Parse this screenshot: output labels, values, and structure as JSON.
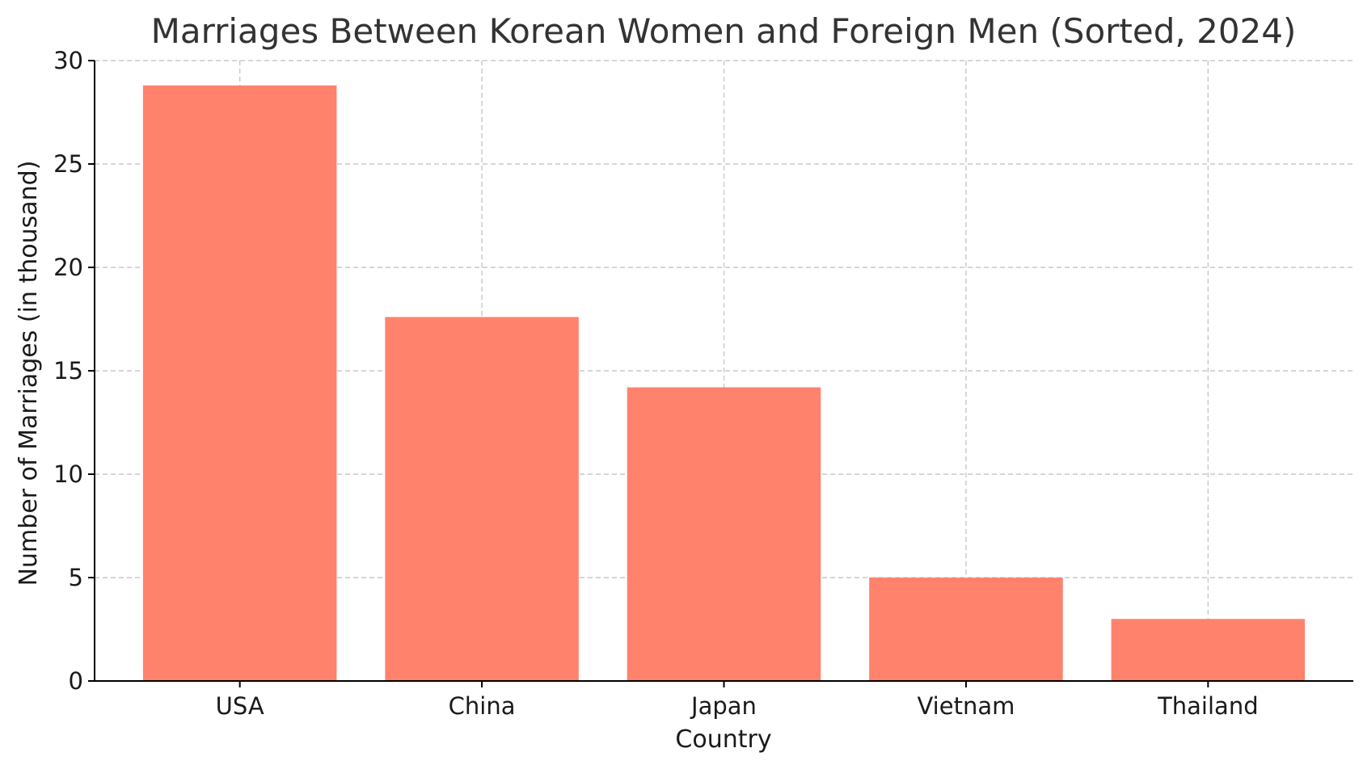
{
  "chart_data": {
    "type": "bar",
    "title": "Marriages Between Korean Women and Foreign Men (Sorted, 2024)",
    "xlabel": "Country",
    "ylabel": "Number of Marriages (in thousand)",
    "categories": [
      "USA",
      "China",
      "Japan",
      "Vietnam",
      "Thailand"
    ],
    "values": [
      28.8,
      17.6,
      14.2,
      5.0,
      3.0
    ],
    "ylim": [
      0,
      30
    ],
    "yticks": [
      0,
      5,
      10,
      15,
      20,
      25,
      30
    ],
    "grid": true,
    "legend": false,
    "colors": {
      "bar": "#ff826d"
    }
  }
}
